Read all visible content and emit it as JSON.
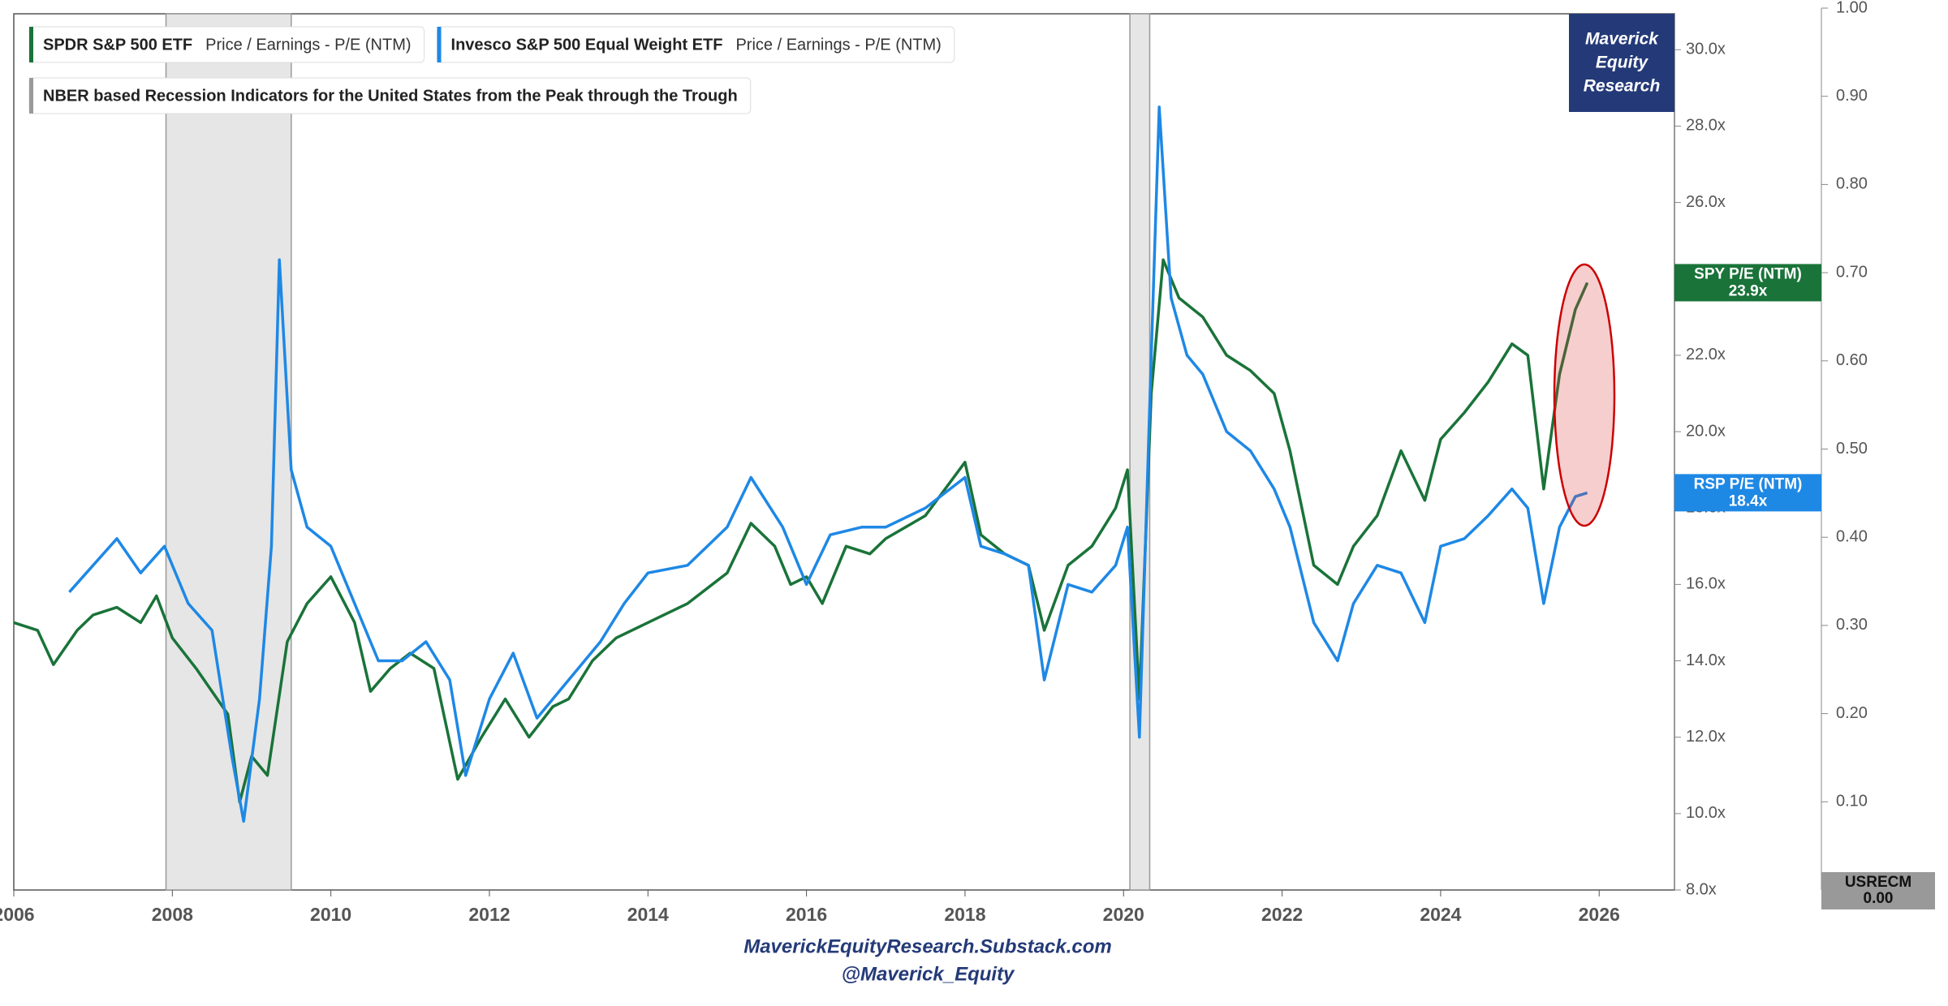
{
  "chart_data": {
    "type": "line",
    "legend": [
      {
        "name": "SPDR S&P 500 ETF",
        "metric": "Price / Earnings - P/E (NTM)"
      },
      {
        "name": "Invesco S&P 500 Equal Weight ETF",
        "metric": "Price / Earnings - P/E (NTM)"
      }
    ],
    "recession_name": "NBER based Recession Indicators for the United States from the Peak through the Trough",
    "recessions": [
      [
        2007.92,
        2009.5
      ],
      [
        2020.08,
        2020.33
      ]
    ],
    "xlim": [
      2006,
      2026.95
    ],
    "xticks": [
      2006,
      2008,
      2010,
      2012,
      2014,
      2016,
      2018,
      2020,
      2022,
      2024,
      2026
    ],
    "ylim": [
      8,
      30.94
    ],
    "yticks": [
      {
        "value": 8,
        "label": "8.0x"
      },
      {
        "value": 10,
        "label": "10.0x"
      },
      {
        "value": 12,
        "label": "12.0x"
      },
      {
        "value": 14,
        "label": "14.0x"
      },
      {
        "value": 16,
        "label": "16.0x"
      },
      {
        "value": 18,
        "label": "18.0x"
      },
      {
        "value": 20,
        "label": "20.0x"
      },
      {
        "value": 22,
        "label": "22.0x"
      },
      {
        "value": 24,
        "label": "24.0x"
      },
      {
        "value": 26,
        "label": "26.0x"
      },
      {
        "value": 28,
        "label": "28.0x"
      },
      {
        "value": 30,
        "label": "30.0x"
      }
    ],
    "y2lim": [
      0,
      1
    ],
    "y2ticks": [
      {
        "value": 0.1,
        "label": "0.10"
      },
      {
        "value": 0.2,
        "label": "0.20"
      },
      {
        "value": 0.3,
        "label": "0.30"
      },
      {
        "value": 0.4,
        "label": "0.40"
      },
      {
        "value": 0.5,
        "label": "0.50"
      },
      {
        "value": 0.6,
        "label": "0.60"
      },
      {
        "value": 0.7,
        "label": "0.70"
      },
      {
        "value": 0.8,
        "label": "0.80"
      },
      {
        "value": 0.9,
        "label": "0.90"
      },
      {
        "value": 1,
        "label": "1.00"
      }
    ],
    "series": [
      {
        "name": "SPY P/E (NTM)",
        "color": "#1a7339",
        "last_label": "23.9x",
        "x": [
          2006.0,
          2006.3,
          2006.5,
          2006.8,
          2007.0,
          2007.3,
          2007.6,
          2007.8,
          2008.0,
          2008.3,
          2008.5,
          2008.7,
          2008.85,
          2009.0,
          2009.2,
          2009.45,
          2009.7,
          2010.0,
          2010.3,
          2010.5,
          2010.75,
          2011.0,
          2011.3,
          2011.6,
          2011.9,
          2012.2,
          2012.5,
          2012.8,
          2013.0,
          2013.3,
          2013.6,
          2014.0,
          2014.5,
          2015.0,
          2015.3,
          2015.6,
          2015.8,
          2016.0,
          2016.2,
          2016.5,
          2016.8,
          2017.0,
          2017.5,
          2018.0,
          2018.2,
          2018.5,
          2018.8,
          2019.0,
          2019.3,
          2019.6,
          2019.9,
          2020.05,
          2020.2,
          2020.35,
          2020.5,
          2020.7,
          2021.0,
          2021.3,
          2021.6,
          2021.9,
          2022.1,
          2022.4,
          2022.7,
          2022.9,
          2023.2,
          2023.5,
          2023.8,
          2024.0,
          2024.3,
          2024.6,
          2024.9,
          2025.1,
          2025.3,
          2025.5,
          2025.7,
          2025.85
        ],
        "values": [
          15.0,
          14.8,
          13.9,
          14.8,
          15.2,
          15.4,
          15.0,
          15.7,
          14.6,
          13.8,
          13.2,
          12.6,
          10.3,
          11.5,
          11.0,
          14.5,
          15.5,
          16.2,
          15.0,
          13.2,
          13.8,
          14.2,
          13.8,
          10.9,
          12.0,
          13.0,
          12.0,
          12.8,
          13.0,
          14.0,
          14.6,
          15.0,
          15.5,
          16.3,
          17.6,
          17.0,
          16.0,
          16.2,
          15.5,
          17.0,
          16.8,
          17.2,
          17.8,
          19.2,
          17.3,
          16.8,
          16.5,
          14.8,
          16.5,
          17.0,
          18.0,
          19.0,
          13.0,
          21.0,
          24.5,
          23.5,
          23.0,
          22.0,
          21.6,
          21.0,
          19.5,
          16.5,
          16.0,
          17.0,
          17.8,
          19.5,
          18.2,
          19.8,
          20.5,
          21.3,
          22.3,
          22.0,
          18.5,
          21.5,
          23.2,
          23.9
        ]
      },
      {
        "name": "RSP P/E (NTM)",
        "color": "#1e88e5",
        "last_label": "18.4x",
        "x": [
          2006.7,
          2007.0,
          2007.3,
          2007.6,
          2007.9,
          2008.2,
          2008.5,
          2008.75,
          2008.9,
          2009.1,
          2009.25,
          2009.35,
          2009.5,
          2009.7,
          2010.0,
          2010.3,
          2010.6,
          2010.9,
          2011.2,
          2011.5,
          2011.7,
          2012.0,
          2012.3,
          2012.6,
          2013.0,
          2013.4,
          2013.7,
          2014.0,
          2014.5,
          2015.0,
          2015.3,
          2015.7,
          2016.0,
          2016.3,
          2016.7,
          2017.0,
          2017.5,
          2018.0,
          2018.2,
          2018.5,
          2018.8,
          2019.0,
          2019.3,
          2019.6,
          2019.9,
          2020.05,
          2020.2,
          2020.35,
          2020.45,
          2020.6,
          2020.8,
          2021.0,
          2021.3,
          2021.6,
          2021.9,
          2022.1,
          2022.4,
          2022.7,
          2022.9,
          2023.2,
          2023.5,
          2023.8,
          2024.0,
          2024.3,
          2024.6,
          2024.9,
          2025.1,
          2025.3,
          2025.5,
          2025.7,
          2025.85
        ],
        "values": [
          15.8,
          16.5,
          17.2,
          16.3,
          17.0,
          15.5,
          14.8,
          11.5,
          9.8,
          13.0,
          17.0,
          24.5,
          19.0,
          17.5,
          17.0,
          15.5,
          14.0,
          14.0,
          14.5,
          13.5,
          11.0,
          13.0,
          14.2,
          12.5,
          13.5,
          14.5,
          15.5,
          16.3,
          16.5,
          17.5,
          18.8,
          17.5,
          16.0,
          17.3,
          17.5,
          17.5,
          18.0,
          18.8,
          17.0,
          16.8,
          16.5,
          13.5,
          16.0,
          15.8,
          16.5,
          17.5,
          12.0,
          22.0,
          28.5,
          23.5,
          22.0,
          21.5,
          20.0,
          19.5,
          18.5,
          17.5,
          15.0,
          14.0,
          15.5,
          16.5,
          16.3,
          15.0,
          17.0,
          17.2,
          17.8,
          18.5,
          18.0,
          15.5,
          17.5,
          18.3,
          18.4
        ]
      }
    ],
    "recession_badge": {
      "name": "USRECM",
      "value": 0,
      "label": "0.00"
    },
    "logo": [
      "Maverick",
      "Equity",
      "Research"
    ],
    "footer": [
      "MaverickEquityResearch.Substack.com",
      "@Maverick_Equity"
    ]
  }
}
